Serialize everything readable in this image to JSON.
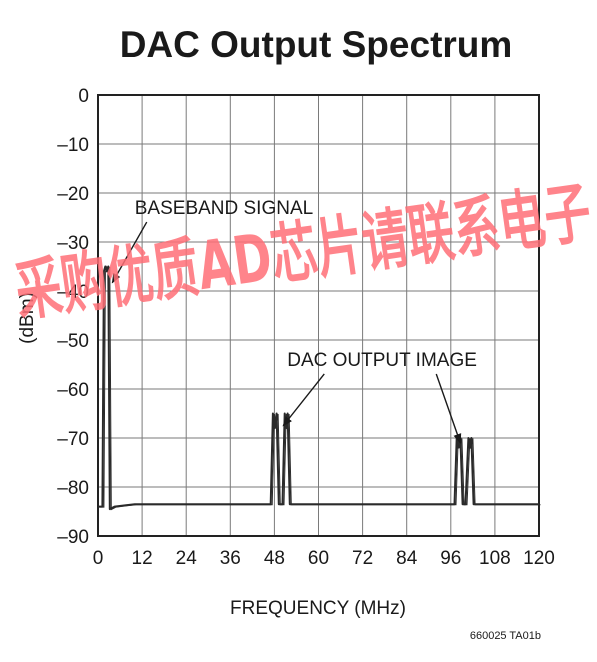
{
  "chart_data": {
    "type": "line",
    "title": "DAC Output Spectrum",
    "xlabel": "FREQUENCY (MHz)",
    "ylabel": "(dBm)",
    "xlim": [
      0,
      120
    ],
    "ylim": [
      -90,
      0
    ],
    "x_ticks": [
      "0",
      "12",
      "24",
      "36",
      "48",
      "60",
      "72",
      "84",
      "96",
      "108",
      "120"
    ],
    "y_ticks": [
      "0",
      "–10",
      "–20",
      "–30",
      "–40",
      "–50",
      "–60",
      "–70",
      "–80",
      "–90"
    ],
    "grid": true,
    "series": [
      {
        "x": [
          0,
          1.2,
          1.6,
          2.0,
          2.4,
          2.8,
          3.2,
          4.5,
          10,
          20,
          30,
          40,
          45,
          47,
          47.6,
          48,
          48.6,
          49.2,
          50.2,
          50.8,
          51.2,
          51.6,
          52.2,
          52.8,
          55,
          60,
          70,
          80,
          90,
          95,
          97,
          97.6,
          98,
          98.6,
          99.2,
          100,
          100.8,
          101.2,
          101.6,
          102.2,
          102.8,
          105,
          110,
          115,
          120
        ],
        "y": [
          -84,
          -84,
          -36,
          -35,
          -36,
          -35,
          -84.5,
          -84,
          -83.5,
          -83.5,
          -83.5,
          -83.5,
          -83.5,
          -83.5,
          -65,
          -68,
          -65,
          -83.5,
          -83.5,
          -65,
          -68,
          -65,
          -83.5,
          -83.5,
          -83.5,
          -83.5,
          -83.5,
          -83.5,
          -83.5,
          -83.5,
          -83.5,
          -70,
          -72,
          -70,
          -83.5,
          -83.5,
          -70,
          -72,
          -70,
          -83.5,
          -83.5,
          -83.5,
          -83.5,
          -83.5,
          -83.5
        ]
      }
    ],
    "annotations": [
      {
        "text": "BASEBAND SIGNAL",
        "x": 10,
        "y": -24.3,
        "arrow_to": [
          {
            "x": 3.9,
            "y": -38.3
          }
        ]
      },
      {
        "text": "DAC OUTPUT IMAGE",
        "x": 51.5,
        "y": -55.3,
        "arrow_to": [
          {
            "x": 50.4,
            "y": -67.5
          },
          {
            "x": 98.6,
            "y": -71
          }
        ]
      }
    ]
  },
  "figure_id": "660025 TA01b",
  "watermark": "采购优质AD芯片请联系电子",
  "colors": {
    "line": "#2a2a2a",
    "grid": "#7a7a7a",
    "frame": "#222222",
    "text": "#1a1a1a",
    "watermark": "#ff6f77"
  }
}
